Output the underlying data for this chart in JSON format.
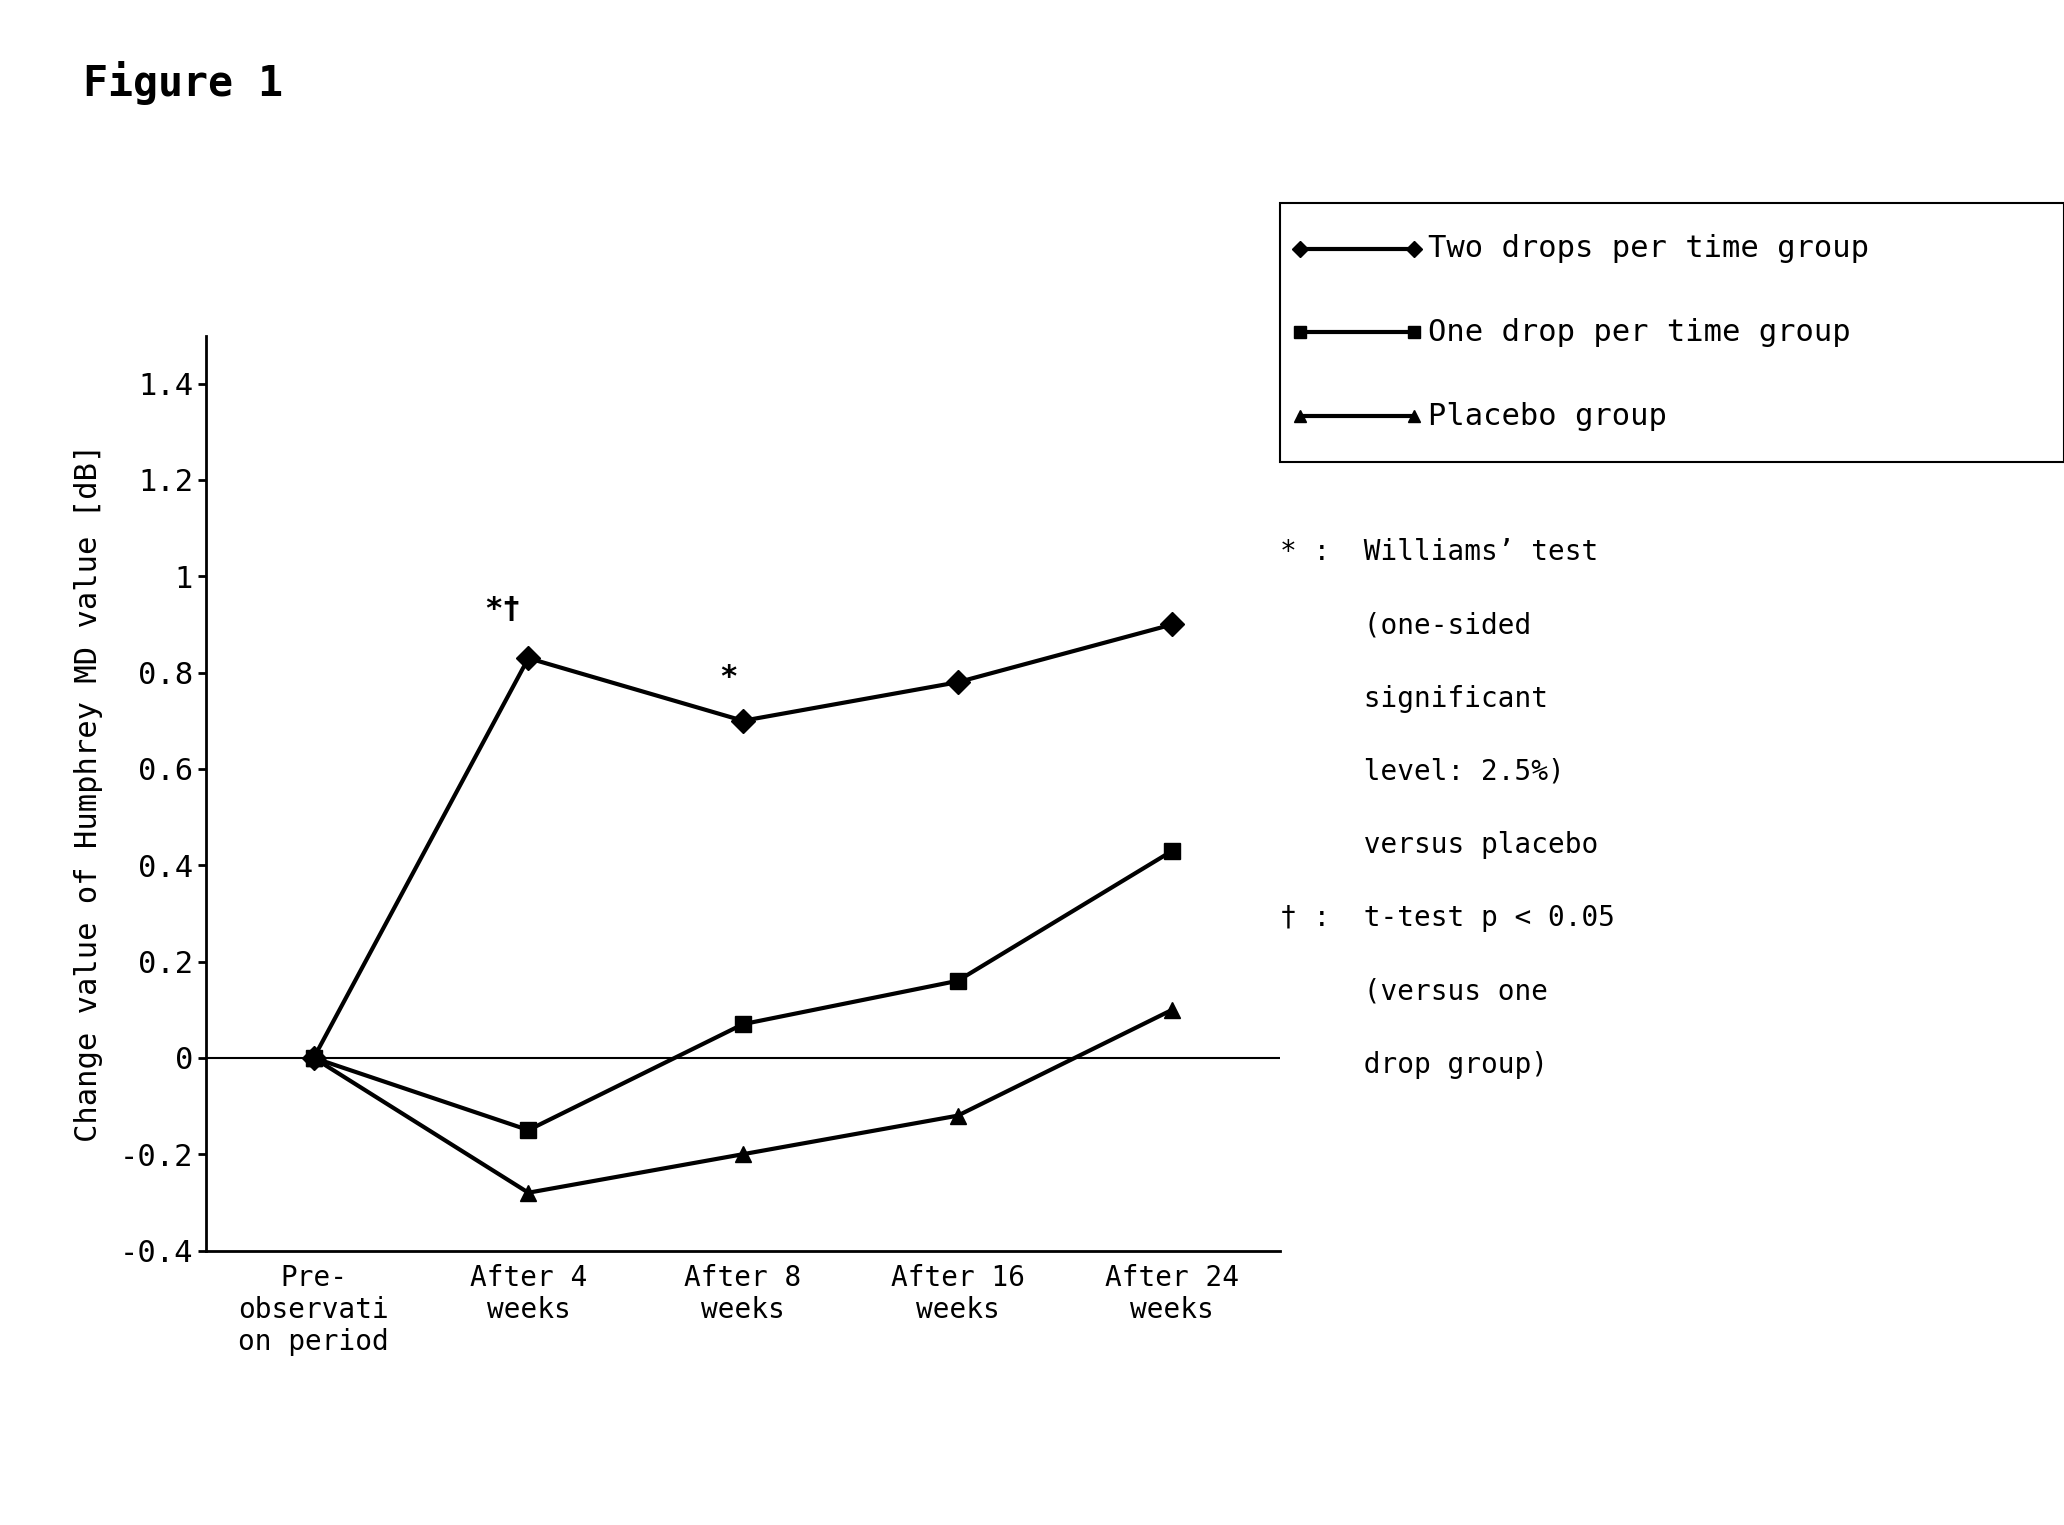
{
  "figure_label": "Figure 1",
  "x_positions": [
    0,
    1,
    2,
    3,
    4
  ],
  "x_tick_labels": [
    "Pre-\nobservati\non period",
    "After 4\nweeks",
    "After 8\nweeks",
    "After 16\nweeks",
    "After 24\nweeks"
  ],
  "two_drops": [
    0.0,
    0.83,
    0.7,
    0.78,
    0.9
  ],
  "one_drop": [
    0.0,
    -0.15,
    0.07,
    0.16,
    0.43
  ],
  "placebo": [
    0.0,
    -0.28,
    -0.2,
    -0.12,
    0.1
  ],
  "ylim": [
    -0.4,
    1.5
  ],
  "yticks": [
    -0.4,
    -0.2,
    0.0,
    0.2,
    0.4,
    0.6,
    0.8,
    1.0,
    1.2,
    1.4
  ],
  "ytick_labels": [
    "-0.4",
    "-0.2",
    "0",
    "0.2",
    "0.4",
    "0.6",
    "0.8",
    "1",
    "1.2",
    "1.4"
  ],
  "ylabel": "Change value of Humphrey MD value [dB]",
  "legend_two_drops": "Two drops per time group",
  "legend_one_drop": "One drop per time group",
  "legend_placebo": "Placebo group",
  "line_color": "#000000",
  "background_color": "#ffffff",
  "note_line1": "*：  Williams’ test",
  "note_line2": "    (one-sided",
  "note_line3": "    significant",
  "note_line4": "    level: 2.5%)",
  "note_line5": "    versus placebo",
  "note_line6": "†：  t-test p < 0.05",
  "note_line7": "    (versus one",
  "note_line8": "    drop group)"
}
